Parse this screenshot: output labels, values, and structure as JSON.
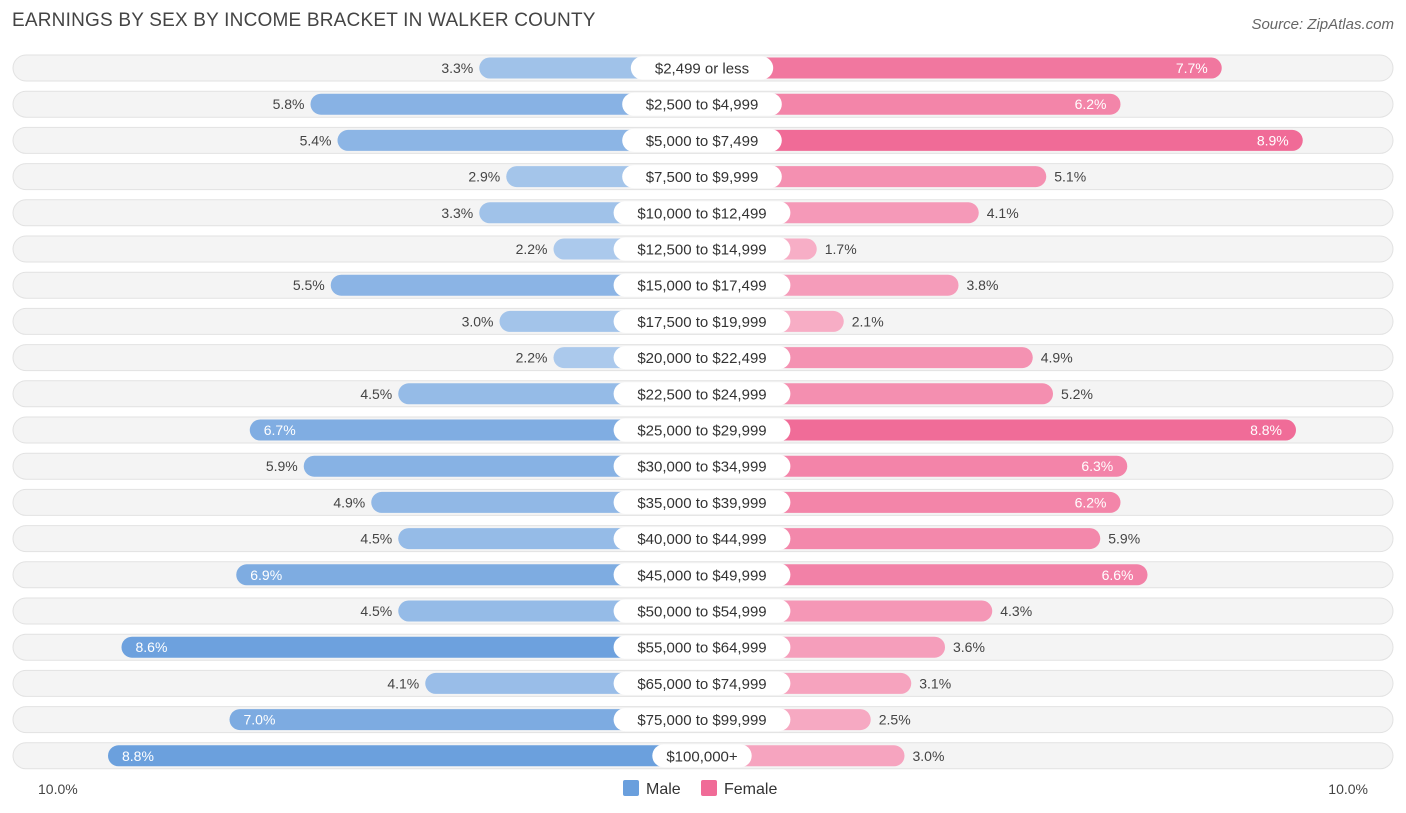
{
  "title": "EARNINGS BY SEX BY INCOME BRACKET IN WALKER COUNTY",
  "source": "Source: ZipAtlas.com",
  "chart_data": {
    "type": "bar",
    "orientation": "horizontal-diverging",
    "categories": [
      "$2,499 or less",
      "$2,500 to $4,999",
      "$5,000 to $7,499",
      "$7,500 to $9,999",
      "$10,000 to $12,499",
      "$12,500 to $14,999",
      "$15,000 to $17,499",
      "$17,500 to $19,999",
      "$20,000 to $22,499",
      "$22,500 to $24,999",
      "$25,000 to $29,999",
      "$30,000 to $34,999",
      "$35,000 to $39,999",
      "$40,000 to $44,999",
      "$45,000 to $49,999",
      "$50,000 to $54,999",
      "$55,000 to $64,999",
      "$65,000 to $74,999",
      "$75,000 to $99,999",
      "$100,000+"
    ],
    "series": [
      {
        "name": "Male",
        "color": "#6a9fdd",
        "values": [
          3.3,
          5.8,
          5.4,
          2.9,
          3.3,
          2.2,
          5.5,
          3.0,
          2.2,
          4.5,
          6.7,
          5.9,
          4.9,
          4.5,
          6.9,
          4.5,
          8.6,
          4.1,
          7.0,
          8.8
        ],
        "labels": [
          "3.3%",
          "5.8%",
          "5.4%",
          "2.9%",
          "3.3%",
          "2.2%",
          "5.5%",
          "3.0%",
          "2.2%",
          "4.5%",
          "6.7%",
          "5.9%",
          "4.9%",
          "4.5%",
          "6.9%",
          "4.5%",
          "8.6%",
          "4.1%",
          "7.0%",
          "8.8%"
        ]
      },
      {
        "name": "Female",
        "color": "#f06b97",
        "values": [
          7.7,
          6.2,
          8.9,
          5.1,
          4.1,
          1.7,
          3.8,
          2.1,
          4.9,
          5.2,
          8.8,
          6.3,
          6.2,
          5.9,
          6.6,
          4.3,
          3.6,
          3.1,
          2.5,
          3.0
        ],
        "labels": [
          "7.7%",
          "6.2%",
          "8.9%",
          "5.1%",
          "4.1%",
          "1.7%",
          "3.8%",
          "2.1%",
          "4.9%",
          "5.2%",
          "8.8%",
          "6.3%",
          "6.2%",
          "5.9%",
          "6.6%",
          "4.3%",
          "3.6%",
          "3.1%",
          "2.5%",
          "3.0%"
        ]
      }
    ],
    "axis_min_label": "10.0%",
    "axis_max_label": "10.0%",
    "xlim": [
      -10,
      10
    ],
    "legend": [
      "Male",
      "Female"
    ],
    "legend_position": "bottom-center"
  }
}
